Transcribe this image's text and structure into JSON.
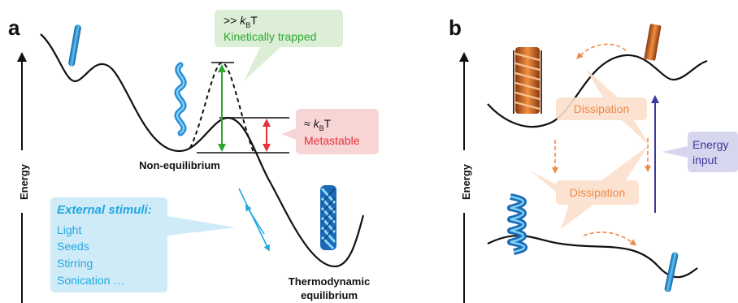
{
  "panel_a": {
    "label": "a",
    "axis_label": "Energy",
    "state_left": "Non-equilibrium",
    "state_right_line1": "Thermodynamic",
    "state_right_line2": "equilibrium",
    "kinetic_callout": {
      "line1_prefix": ">> ",
      "k": "k",
      "sub": "B",
      "T": "T",
      "caption": "Kinetically trapped",
      "color": "#2aa832"
    },
    "metastable_callout": {
      "line1_prefix": "≈ ",
      "k": "k",
      "sub": "B",
      "T": "T",
      "caption": "Metastable",
      "color": "#e8323c"
    },
    "stimuli": {
      "title": "External stimuli:",
      "items": [
        "Light",
        "Seeds",
        "Stirring",
        "Sonication …"
      ],
      "color": "#1fa8e0"
    }
  },
  "panel_b": {
    "label": "b",
    "axis_label": "Energy",
    "dissipation_top": "Dissipation",
    "dissipation_bottom": "Dissipation",
    "energy_input_line1": "Energy",
    "energy_input_line2": "input",
    "dissipation_color": "#ee8a4a",
    "energy_color": "#3a3aa0"
  }
}
